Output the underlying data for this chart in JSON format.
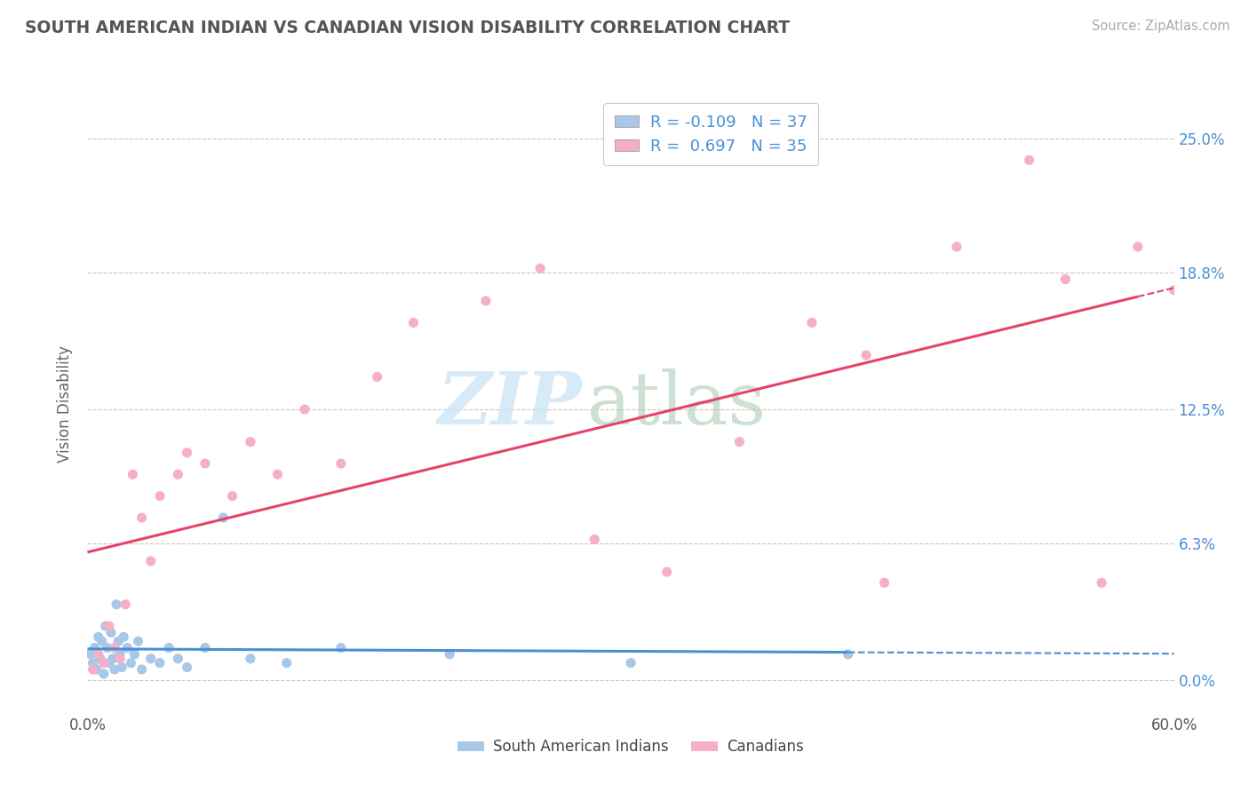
{
  "title": "SOUTH AMERICAN INDIAN VS CANADIAN VISION DISABILITY CORRELATION CHART",
  "source": "Source: ZipAtlas.com",
  "ylabel": "Vision Disability",
  "ytick_values": [
    0.0,
    6.3,
    12.5,
    18.8,
    25.0
  ],
  "xlim": [
    0.0,
    60.0
  ],
  "ylim": [
    -1.5,
    27.0
  ],
  "r_blue": -0.109,
  "n_blue": 37,
  "r_pink": 0.697,
  "n_pink": 35,
  "color_blue_scatter": "#a8c8e8",
  "color_pink_scatter": "#f5b0c5",
  "color_blue_line": "#4a8fd4",
  "color_pink_line": "#e8426a",
  "color_title": "#555555",
  "color_source": "#aaaaaa",
  "color_ytick": "#4a8fd4",
  "color_grid": "#c8c8c8",
  "blue_x": [
    0.2,
    0.3,
    0.4,
    0.5,
    0.6,
    0.7,
    0.8,
    0.9,
    1.0,
    1.1,
    1.2,
    1.3,
    1.4,
    1.5,
    1.6,
    1.7,
    1.8,
    1.9,
    2.0,
    2.2,
    2.4,
    2.6,
    2.8,
    3.0,
    3.5,
    4.0,
    4.5,
    5.0,
    5.5,
    6.5,
    7.5,
    9.0,
    11.0,
    14.0,
    20.0,
    30.0,
    42.0
  ],
  "blue_y": [
    1.2,
    0.8,
    1.5,
    0.5,
    2.0,
    1.0,
    1.8,
    0.3,
    2.5,
    1.5,
    0.8,
    2.2,
    1.0,
    0.5,
    3.5,
    1.8,
    1.2,
    0.6,
    2.0,
    1.5,
    0.8,
    1.2,
    1.8,
    0.5,
    1.0,
    0.8,
    1.5,
    1.0,
    0.6,
    1.5,
    7.5,
    1.0,
    0.8,
    1.5,
    1.2,
    0.8,
    1.2
  ],
  "pink_x": [
    0.3,
    0.6,
    0.9,
    1.2,
    1.5,
    1.8,
    2.1,
    2.5,
    3.0,
    3.5,
    4.0,
    5.0,
    5.5,
    6.5,
    8.0,
    9.0,
    10.5,
    12.0,
    14.0,
    16.0,
    18.0,
    22.0,
    25.0,
    28.0,
    32.0,
    36.0,
    40.0,
    44.0,
    48.0,
    52.0,
    54.0,
    56.0,
    58.0,
    43.0,
    60.0
  ],
  "pink_y": [
    0.5,
    1.2,
    0.8,
    2.5,
    1.5,
    1.0,
    3.5,
    9.5,
    7.5,
    5.5,
    8.5,
    9.5,
    10.5,
    10.0,
    8.5,
    11.0,
    9.5,
    12.5,
    10.0,
    14.0,
    16.5,
    17.5,
    19.0,
    6.5,
    5.0,
    11.0,
    16.5,
    4.5,
    20.0,
    24.0,
    18.5,
    4.5,
    20.0,
    15.0,
    18.0
  ],
  "zip_color1": "#cde5f5",
  "zip_color2": "#b8d4c0",
  "watermark_zip": "ZIP",
  "watermark_atlas": "atlas"
}
